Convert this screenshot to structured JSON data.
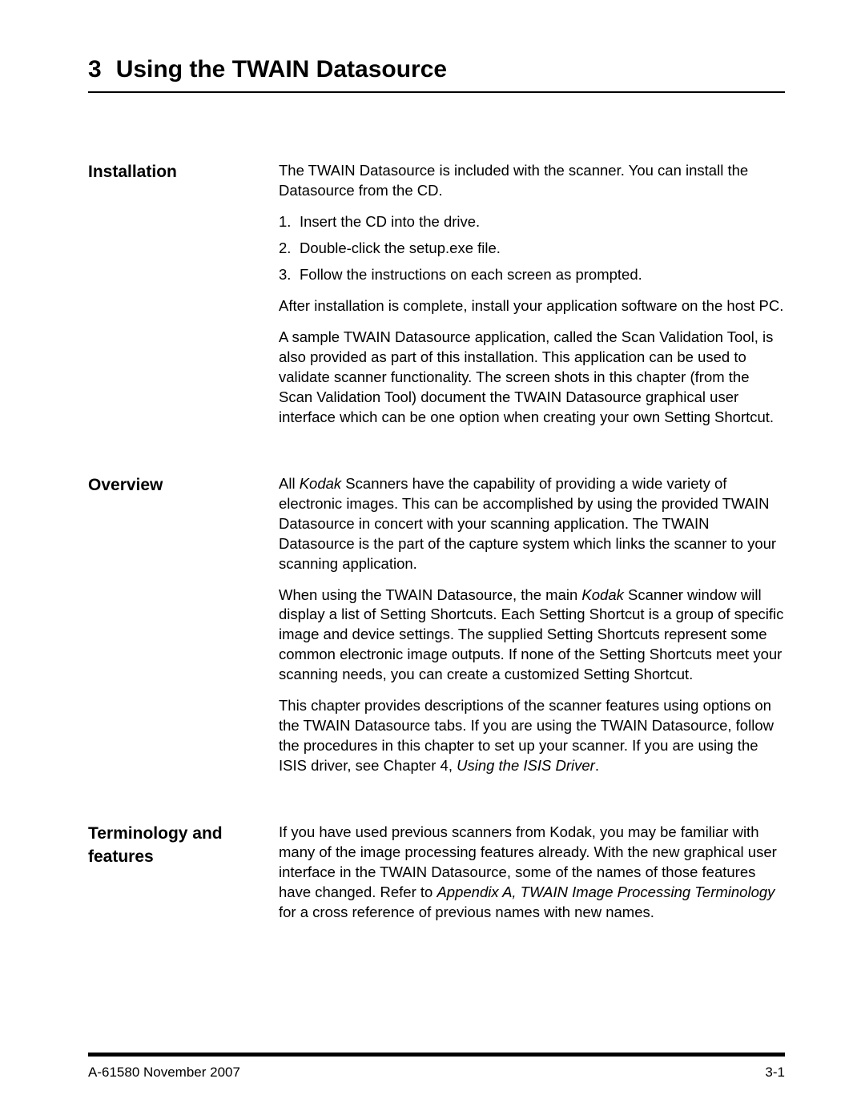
{
  "chapter": {
    "number": "3",
    "title": "Using the TWAIN Datasource"
  },
  "sections": {
    "installation": {
      "label": "Installation",
      "intro": "The TWAIN Datasource is included with the scanner. You can install the Datasource from the CD.",
      "steps": [
        {
          "n": "1.",
          "text": "Insert the CD into the drive."
        },
        {
          "n": "2.",
          "text": "Double-click the setup.exe file."
        },
        {
          "n": "3.",
          "text": "Follow the instructions on each screen as prompted."
        }
      ],
      "after": "After installation is complete, install your application software on the host PC.",
      "sample": "A sample TWAIN Datasource application, called the Scan Validation Tool, is also provided as part of this installation. This application can be used to validate scanner functionality. The screen shots in this chapter (from the Scan Validation Tool) document the TWAIN Datasource graphical user interface which can be one option when creating your own Setting Shortcut."
    },
    "overview": {
      "label": "Overview",
      "p1_a": "All ",
      "p1_b": "Kodak",
      "p1_c": " Scanners have the capability of providing a wide variety of electronic images. This can be accomplished by using the provided TWAIN Datasource in concert with your scanning application. The TWAIN Datasource is the part of the capture system which links the scanner to your scanning application.",
      "p2_a": "When using the TWAIN Datasource, the main ",
      "p2_b": "Kodak",
      "p2_c": " Scanner window will display a list of Setting Shortcuts. Each Setting Shortcut is a group of specific image and device settings. The supplied Setting Shortcuts represent some common electronic image outputs. If none of the Setting Shortcuts meet your scanning needs, you can create a customized Setting Shortcut.",
      "p3_a": "This chapter provides descriptions of the scanner features using options on the TWAIN Datasource tabs. If you are using the TWAIN Datasource, follow the procedures in this chapter to set up your scanner. If you are using the ISIS driver, see Chapter 4, ",
      "p3_b": "Using the ISIS Driver",
      "p3_c": "."
    },
    "terminology": {
      "label": "Terminology and features",
      "p1_a": "If you have used previous scanners from Kodak, you may be familiar with many of the image processing features already. With the new graphical user interface in the TWAIN Datasource, some of the names of those features have changed. Refer to ",
      "p1_b": "Appendix A, TWAIN Image Processing Terminology",
      "p1_c": " for a cross reference of previous names with new names."
    }
  },
  "footer": {
    "left": "A-61580   November 2007",
    "right": "3-1"
  }
}
